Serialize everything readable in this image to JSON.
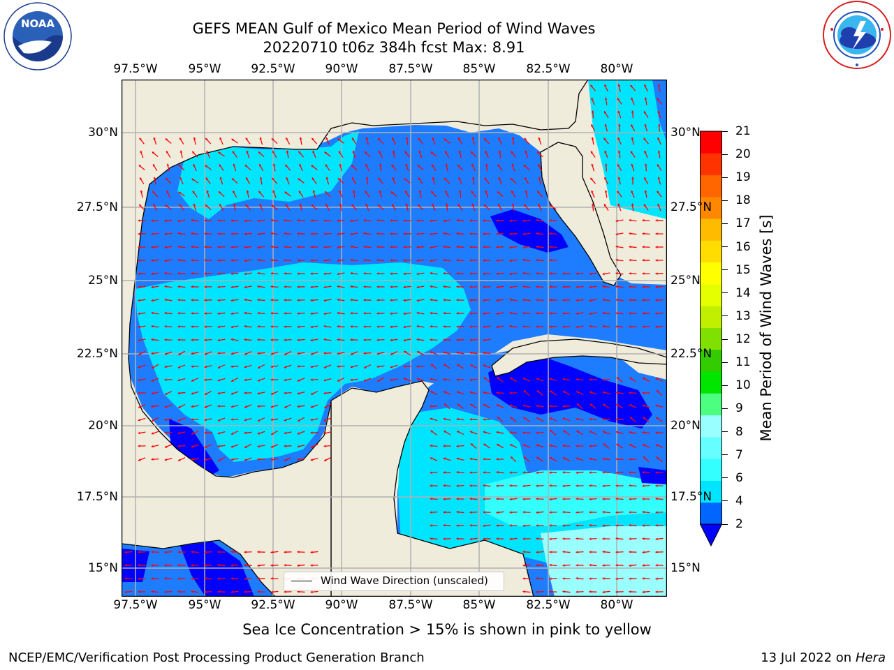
{
  "header": {
    "title_line1": "GEFS MEAN Gulf of Mexico Mean Period of Wind Waves",
    "title_line2": "20220710 t06z 384h fcst   Max: 8.91"
  },
  "logos": {
    "left": {
      "name": "noaa-logo",
      "text": "NOAA",
      "ring_text": "NATIONAL OCEANIC AND ATMOSPHERIC ADMINISTRATION · U.S. DEPARTMENT OF COMMERCE"
    },
    "right": {
      "name": "nws-logo",
      "ring_text": "NATIONAL WEATHER SERVICE"
    }
  },
  "map": {
    "lon_ticks": [
      "97.5°W",
      "95°W",
      "92.5°W",
      "90°W",
      "87.5°W",
      "85°W",
      "82.5°W",
      "80°W"
    ],
    "lat_ticks_left": [
      "30°N",
      "27.5°N",
      "25°N",
      "22.5°N",
      "20°N",
      "17.5°N",
      "15°N"
    ],
    "lat_ticks_right": [
      "30°N",
      "27.5°N",
      "25°N",
      "22.5°N",
      "20°N",
      "17.5°N",
      "15°N"
    ],
    "land_color": "#efecdc",
    "arrow_color": "#ff0000",
    "grid_color": "#b0b0b0",
    "max_value": 8.91
  },
  "legend": {
    "label": "Wind Wave Direction (unscaled)"
  },
  "colorbar": {
    "label": "Mean Period of Wind Waves [s]",
    "ticks": [
      "2",
      "4",
      "6",
      "7",
      "8",
      "9",
      "10",
      "11",
      "12",
      "13",
      "14",
      "15",
      "16",
      "17",
      "18",
      "19",
      "20",
      "21"
    ],
    "colors": [
      "#0066ff",
      "#00e5ff",
      "#33ffff",
      "#66ffff",
      "#99ffff",
      "#4cff80",
      "#00e600",
      "#33cc00",
      "#80e000",
      "#c0f000",
      "#e6ff00",
      "#ffff00",
      "#ffdd00",
      "#ffbb00",
      "#ff8800",
      "#ff6600",
      "#ff3300",
      "#ff0000"
    ],
    "under_color": "#0000ff"
  },
  "footer": {
    "note": "Sea Ice Concentration > 15% is shown in pink to yellow",
    "branch": "NCEP/EMC/Verification Post Processing Product Generation Branch",
    "date": "13 Jul 2022 on ",
    "machine": "Hera"
  }
}
